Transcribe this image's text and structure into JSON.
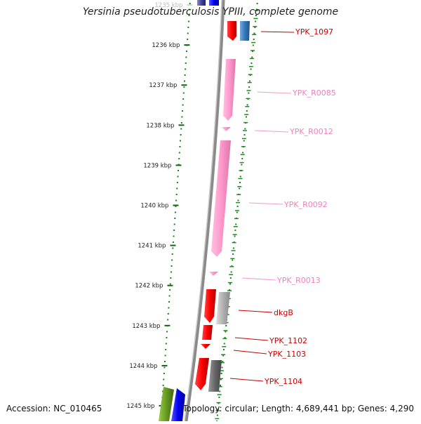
{
  "title": "Yersinia pseudotuberculosis YPIII, complete genome",
  "accession": "Accession: NC_010465",
  "topology": "Topology: circular; Length: 4,689,441 bp; Genes: 4,290",
  "scale": {
    "unit": "kbp",
    "ticks": [
      {
        "label": "1235 kbp",
        "faded": true
      },
      {
        "label": "1236 kbp"
      },
      {
        "label": "1237 kbp"
      },
      {
        "label": "1238 kbp"
      },
      {
        "label": "1239 kbp"
      },
      {
        "label": "1240 kbp"
      },
      {
        "label": "1241 kbp"
      },
      {
        "label": "1242 kbp"
      },
      {
        "label": "1243 kbp"
      },
      {
        "label": "1244 kbp"
      },
      {
        "label": "1245 kbp"
      }
    ]
  },
  "features": [
    {
      "label": "YPK_1097",
      "color": "#cc0000",
      "type": "gene"
    },
    {
      "label": "YPK_R0085",
      "color": "#ee82c0",
      "type": "rRNA"
    },
    {
      "label": "YPK_R0012",
      "color": "#ee82c0",
      "type": "tRNA"
    },
    {
      "label": "YPK_R0092",
      "color": "#ee82c0",
      "type": "rRNA"
    },
    {
      "label": "YPK_R0013",
      "color": "#ee82c0",
      "type": "tRNA"
    },
    {
      "label": "dkgB",
      "color": "#cc0000",
      "type": "gene"
    },
    {
      "label": "YPK_1102",
      "color": "#cc0000",
      "type": "gene"
    },
    {
      "label": "YPK_1103",
      "color": "#cc0000",
      "type": "gene"
    },
    {
      "label": "YPK_1104",
      "color": "#cc0000",
      "type": "gene"
    }
  ],
  "colors": {
    "scale_dots": "#118811",
    "backbone": "#888888",
    "gene_red": "#ff0000",
    "rna_pink": "#ff99cc",
    "cds_blue": "#0000ee",
    "cds_grey": "#aaaaaa",
    "cds_steelblue": "#3377bb",
    "cds_olive": "#669922"
  }
}
